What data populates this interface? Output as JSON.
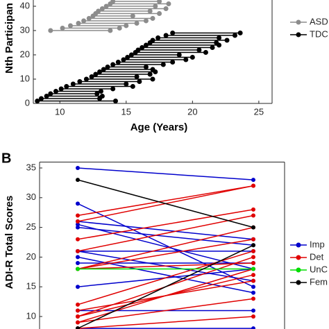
{
  "chart_data": [
    {
      "type": "range",
      "xlabel": "Age (Years)",
      "ylabel": "Nth Participan",
      "xlim": [
        8,
        26
      ],
      "xticks": [
        10,
        15,
        20,
        25
      ],
      "ylim": [
        0,
        45
      ],
      "yticks": [
        0,
        10,
        20,
        30,
        40
      ],
      "series": [
        {
          "name": "ASD",
          "color": "#8c8c8c",
          "participant": [
            30,
            31,
            32,
            33,
            34,
            35,
            36,
            37,
            38,
            39,
            40,
            41,
            42
          ],
          "start": [
            9.3,
            10.2,
            10.8,
            11.4,
            11.8,
            12.2,
            12.5,
            12.7,
            12.9,
            13.2,
            13.5,
            13.8,
            14.0
          ],
          "end": [
            13.8,
            14.5,
            15.0,
            15.8,
            16.5,
            17.0,
            15.5,
            17.5,
            16.8,
            18.0,
            17.2,
            18.2,
            17.5
          ]
        },
        {
          "name": "TDC",
          "color": "#000000",
          "participant": [
            1,
            2,
            3,
            4,
            5,
            6,
            7,
            8,
            9,
            10,
            11,
            12,
            13,
            14,
            15,
            16,
            17,
            18,
            19,
            20,
            21,
            22,
            23,
            24,
            25,
            26,
            27,
            28,
            29
          ],
          "start": [
            8.3,
            8.6,
            9.0,
            9.3,
            9.7,
            10.1,
            10.5,
            11.0,
            11.5,
            12.0,
            12.4,
            12.7,
            13.0,
            13.3,
            13.6,
            14.0,
            14.4,
            14.8,
            15.1,
            15.4,
            15.7,
            15.9,
            16.2,
            16.5,
            16.8,
            17.0,
            17.4,
            18.0,
            18.5
          ],
          "end": [
            14.2,
            13.0,
            13.2,
            12.8,
            13.1,
            14.0,
            15.5,
            15.0,
            16.0,
            17.0,
            15.8,
            16.8,
            17.2,
            17.0,
            16.5,
            17.8,
            18.5,
            19.5,
            20.0,
            19.0,
            21.0,
            20.5,
            21.5,
            22.0,
            21.8,
            22.6,
            22.0,
            23.2,
            23.6
          ]
        }
      ]
    },
    {
      "type": "slope",
      "panel_label": "B",
      "ylabel": "ADI-R Total Scores",
      "ylim": [
        5,
        36
      ],
      "yticks": [
        10,
        15,
        20,
        25,
        30,
        35
      ],
      "series": [
        {
          "name": "Imp",
          "color": "#0000cc",
          "start": [
            35,
            29,
            26,
            25.5,
            25,
            21,
            21,
            20,
            19,
            15,
            11,
            8
          ],
          "end": [
            33,
            15,
            23,
            18,
            22,
            16,
            21,
            14,
            19,
            18,
            11,
            8
          ]
        },
        {
          "name": "Det",
          "color": "#e00000",
          "start": [
            27,
            26,
            23,
            21,
            18,
            18,
            18,
            12,
            11,
            10,
            10,
            9,
            9,
            8
          ],
          "end": [
            32,
            32,
            28,
            27,
            25,
            23,
            19,
            21,
            16,
            17,
            20,
            18,
            13,
            10
          ]
        },
        {
          "name": "UnC",
          "color": "#00dd00",
          "start": [
            18
          ],
          "end": [
            18
          ]
        },
        {
          "name": "Fem",
          "color": "#000000",
          "start": [
            33,
            8
          ],
          "end": [
            25,
            22
          ]
        }
      ]
    }
  ]
}
